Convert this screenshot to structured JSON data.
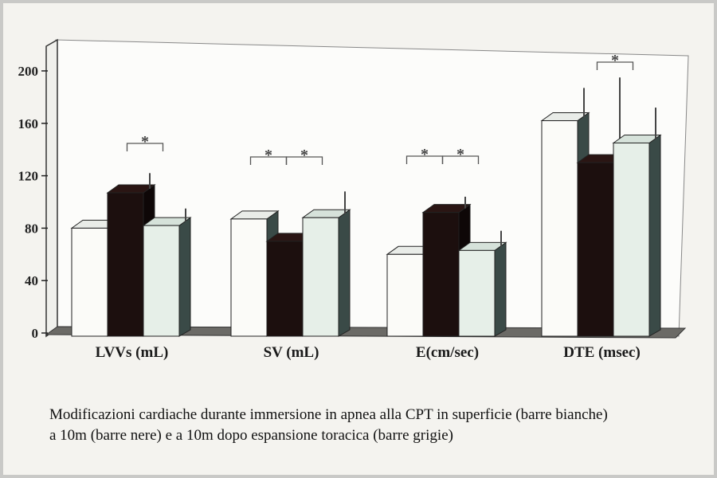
{
  "chart_data": {
    "type": "bar",
    "style": "3d",
    "categories": [
      "LVVs (mL)",
      "SV (mL)",
      "E(cm/sec)",
      "DTE (msec)"
    ],
    "series": [
      {
        "values": [
          80,
          87,
          60,
          162
        ],
        "errors": [
          0,
          0,
          0,
          25
        ],
        "color": "#fbfbf8"
      },
      {
        "values": [
          107,
          70,
          92,
          130
        ],
        "errors": [
          15,
          20,
          12,
          65
        ],
        "color": "#1c0f0e"
      },
      {
        "values": [
          82,
          88,
          63,
          145
        ],
        "errors": [
          13,
          20,
          15,
          27
        ],
        "color": "#e6efe8"
      }
    ],
    "significance": [
      {
        "category": 0,
        "from_series": 1,
        "to_series": 2,
        "label": "*"
      },
      {
        "category": 1,
        "from_series": 0,
        "to_series": 1,
        "label": "*"
      },
      {
        "category": 1,
        "from_series": 1,
        "to_series": 2,
        "label": "*"
      },
      {
        "category": 2,
        "from_series": 0,
        "to_series": 1,
        "label": "*"
      },
      {
        "category": 2,
        "from_series": 1,
        "to_series": 2,
        "label": "*"
      },
      {
        "category": 3,
        "from_series": 1,
        "to_series": 2,
        "label": "*"
      }
    ],
    "yticks": [
      "0",
      "40",
      "80",
      "120",
      "160",
      "200"
    ],
    "ylim": [
      0,
      220
    ],
    "grid": false,
    "title": "",
    "xlabel": "",
    "ylabel": ""
  },
  "caption": {
    "line1": "Modificazioni cardiache durante immersione in apnea alla CPT in superficie (barre bianche)",
    "line2": "a 10m (barre nere)  e a 10m dopo espansione toracica (barre grigie)"
  }
}
